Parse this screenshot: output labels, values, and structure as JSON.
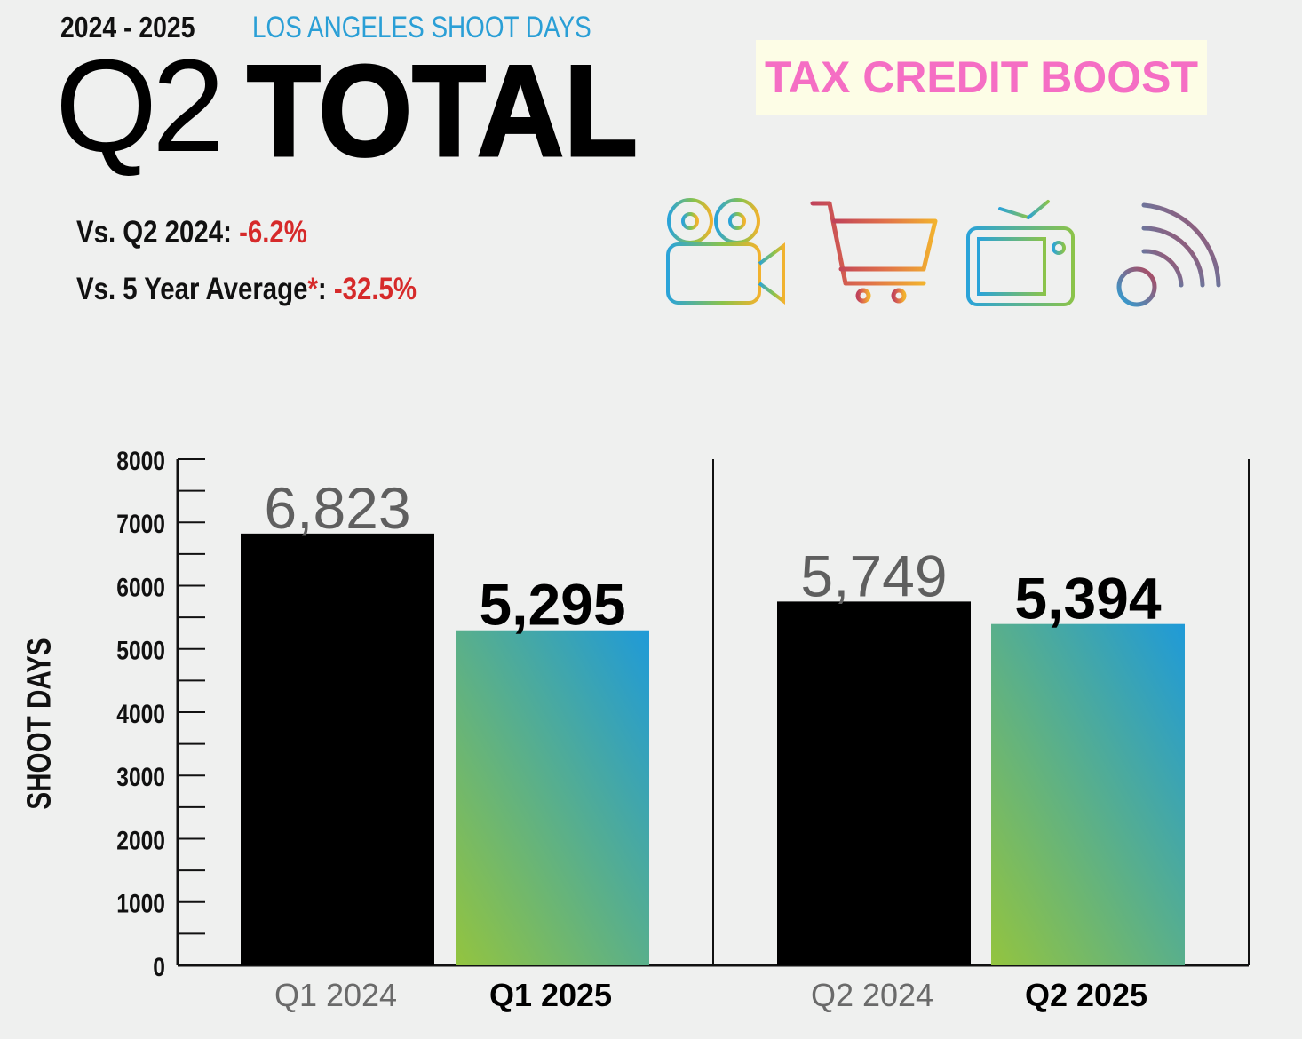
{
  "header": {
    "years": "2024 - 2025",
    "subtitle": "LOS ANGELES SHOOT DAYS",
    "quarter": "Q2",
    "total_word": "TOTAL",
    "badge": "TAX CREDIT BOOST"
  },
  "stats": {
    "vs_q2_label": "Vs. Q2 2024",
    "vs_q2_value": "-6.2%",
    "vs_avg_label": "Vs. 5 Year Average",
    "vs_avg_star": "*",
    "vs_avg_value": "-32.5%"
  },
  "icons": [
    "film-camera-icon",
    "shopping-cart-icon",
    "television-icon",
    "broadcast-signal-icon"
  ],
  "colors": {
    "subtitle": "#2a9fd6",
    "badge_text": "#f56ec4",
    "badge_bg": "#fdfde6",
    "negative": "#d62a2a",
    "bar_2024": "#000000",
    "bar_2025_top": "#1f9ad8",
    "bar_2025_bottom": "#93c43f"
  },
  "chart_data": {
    "type": "bar",
    "ylabel": "SHOOT DAYS",
    "ylim": [
      0,
      8000
    ],
    "yticks": [
      "0",
      "1000",
      "2000",
      "3000",
      "4000",
      "5000",
      "6000",
      "7000",
      "8000"
    ],
    "groups": [
      {
        "bars": [
          {
            "label": "Q1 2024",
            "value": 6823,
            "value_label": "6,823",
            "style": "prior"
          },
          {
            "label": "Q1 2025",
            "value": 5295,
            "value_label": "5,295",
            "style": "current"
          }
        ]
      },
      {
        "bars": [
          {
            "label": "Q2 2024",
            "value": 5749,
            "value_label": "5,749",
            "style": "prior"
          },
          {
            "label": "Q2 2025",
            "value": 5394,
            "value_label": "5,394",
            "style": "current"
          }
        ]
      }
    ],
    "grid": false
  }
}
